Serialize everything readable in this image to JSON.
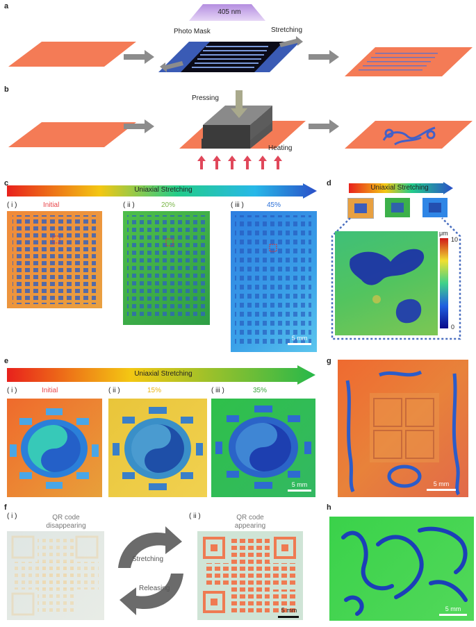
{
  "panels": {
    "a": {
      "letter": "a",
      "wavelength": "405 nm",
      "mask": "Photo Mask",
      "stretch": "Stretching"
    },
    "b": {
      "letter": "b",
      "press": "Pressing",
      "heat": "Heating"
    },
    "c": {
      "letter": "c",
      "bar": "Uniaxial Stretching",
      "steps": [
        {
          "num": "( i )",
          "label": "Initial"
        },
        {
          "num": "( ii )",
          "label": "20%"
        },
        {
          "num": "( iii )",
          "label": "45%"
        }
      ],
      "scale": "5 mm"
    },
    "d": {
      "letter": "d",
      "bar": "Uniaxial Stretching",
      "unit": "μm",
      "tick_max": "10",
      "tick_min": "0"
    },
    "e": {
      "letter": "e",
      "bar": "Uniaxial Stretching",
      "steps": [
        {
          "num": "( i )",
          "label": "Initial"
        },
        {
          "num": "( ii )",
          "label": "15%"
        },
        {
          "num": "( iii )",
          "label": "35%"
        }
      ],
      "scale": "5 mm"
    },
    "f": {
      "letter": "f",
      "left_num": "( i )",
      "left_title": "QR code\ndisappearing",
      "right_num": "( ii )",
      "right_title": "QR code\nappearing",
      "stretch": "Stretching",
      "release": "Releasing",
      "scale": "5 mm"
    },
    "g": {
      "letter": "g",
      "scale": "5 mm"
    },
    "h": {
      "letter": "h",
      "scale": "5 mm"
    }
  },
  "colors": {
    "accent_orange": "#f47b56",
    "initial_label": "#e8454a",
    "pct20": "#7ab648",
    "pct45": "#2a6fd8",
    "pct15": "#e9b40f",
    "pct35": "#3aa53a",
    "mask_blue": "#3a5bb5",
    "arrow_gray": "#8c8c8c",
    "heat_arrow": "#e0475a"
  }
}
